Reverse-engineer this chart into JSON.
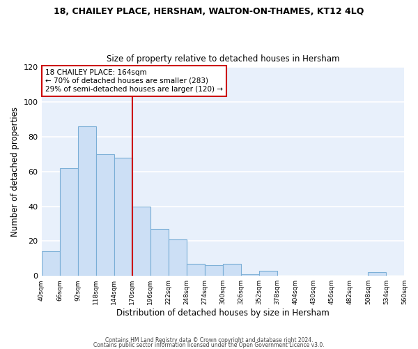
{
  "title": "18, CHAILEY PLACE, HERSHAM, WALTON-ON-THAMES, KT12 4LQ",
  "subtitle": "Size of property relative to detached houses in Hersham",
  "xlabel": "Distribution of detached houses by size in Hersham",
  "ylabel": "Number of detached properties",
  "bin_edges": [
    40,
    66,
    92,
    118,
    144,
    170,
    196,
    222,
    248,
    274,
    300,
    326,
    352,
    378,
    404,
    430,
    456,
    482,
    508,
    534,
    560
  ],
  "bar_heights": [
    14,
    62,
    86,
    70,
    68,
    40,
    27,
    21,
    7,
    6,
    7,
    1,
    3,
    0,
    0,
    0,
    0,
    0,
    2,
    0
  ],
  "bar_color": "#ccdff5",
  "bar_edge_color": "#7aaed6",
  "vline_x": 170,
  "vline_color": "#cc0000",
  "annotation_title": "18 CHAILEY PLACE: 164sqm",
  "annotation_line1": "← 70% of detached houses are smaller (283)",
  "annotation_line2": "29% of semi-detached houses are larger (120) →",
  "annotation_box_color": "#ffffff",
  "annotation_box_edge": "#cc0000",
  "ylim": [
    0,
    120
  ],
  "yticks": [
    0,
    20,
    40,
    60,
    80,
    100,
    120
  ],
  "tick_labels": [
    "40sqm",
    "66sqm",
    "92sqm",
    "118sqm",
    "144sqm",
    "170sqm",
    "196sqm",
    "222sqm",
    "248sqm",
    "274sqm",
    "300sqm",
    "326sqm",
    "352sqm",
    "378sqm",
    "404sqm",
    "430sqm",
    "456sqm",
    "482sqm",
    "508sqm",
    "534sqm",
    "560sqm"
  ],
  "footer1": "Contains HM Land Registry data © Crown copyright and database right 2024.",
  "footer2": "Contains public sector information licensed under the Open Government Licence v3.0.",
  "background_color": "#ffffff",
  "plot_background": "#e8f0fb",
  "grid_color": "#ffffff"
}
